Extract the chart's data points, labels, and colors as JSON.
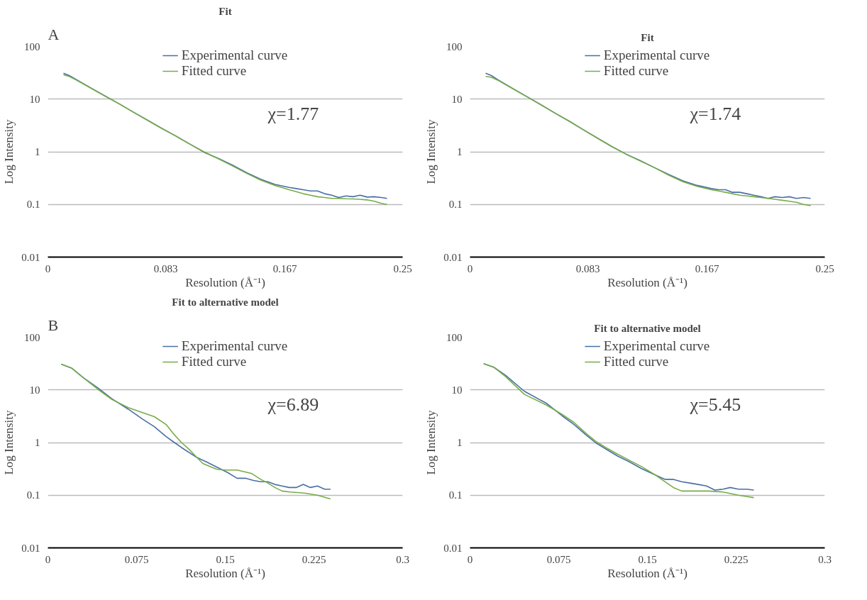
{
  "chart_data": [
    {
      "type": "line",
      "title": "Fit",
      "xlabel": "Resolution (Å⁻¹)",
      "ylabel": "Log Intensity",
      "annotations": [
        "A",
        "χ=1.77"
      ],
      "log": "y",
      "grid": "y",
      "legend": "top",
      "xlim": [
        0,
        0.25
      ],
      "xticks": [
        0,
        0.083,
        0.167,
        0.25
      ],
      "ylim": [
        0.01,
        100
      ],
      "yticks": [
        0.01,
        0.1,
        1,
        10,
        100
      ],
      "x": [
        0.011,
        0.015,
        0.02,
        0.03,
        0.04,
        0.05,
        0.06,
        0.07,
        0.08,
        0.09,
        0.1,
        0.11,
        0.12,
        0.13,
        0.14,
        0.15,
        0.16,
        0.17,
        0.175,
        0.18,
        0.185,
        0.19,
        0.195,
        0.2,
        0.205,
        0.21,
        0.215,
        0.22,
        0.225,
        0.23,
        0.235,
        0.239
      ],
      "series": [
        {
          "name": "Experimental curve",
          "color": "#4a6fa5",
          "values": [
            31,
            28,
            23.5,
            16.5,
            11.6,
            8.2,
            5.7,
            4.0,
            2.8,
            2.0,
            1.4,
            0.98,
            0.75,
            0.56,
            0.4,
            0.3,
            0.24,
            0.21,
            0.2,
            0.19,
            0.18,
            0.18,
            0.16,
            0.15,
            0.135,
            0.145,
            0.14,
            0.15,
            0.138,
            0.14,
            0.135,
            0.13
          ]
        },
        {
          "name": "Fitted curve",
          "color": "#77ac48",
          "values": [
            29,
            27,
            23,
            16.3,
            11.5,
            8.2,
            5.7,
            4.0,
            2.8,
            2.0,
            1.4,
            1.0,
            0.74,
            0.54,
            0.39,
            0.29,
            0.23,
            0.19,
            0.175,
            0.16,
            0.15,
            0.14,
            0.135,
            0.13,
            0.13,
            0.128,
            0.127,
            0.125,
            0.122,
            0.115,
            0.105,
            0.1
          ]
        }
      ]
    },
    {
      "type": "line",
      "title": "Fit",
      "xlabel": "Resolution (Å⁻¹)",
      "ylabel": "Log Intensity",
      "annotations": [
        "χ=1.74"
      ],
      "log": "y",
      "grid": "y",
      "legend": "top",
      "xlim": [
        0,
        0.25
      ],
      "xticks": [
        0,
        0.083,
        0.167,
        0.25
      ],
      "ylim": [
        0.01,
        100
      ],
      "yticks": [
        0.01,
        0.1,
        1,
        10,
        100
      ],
      "x": [
        0.011,
        0.015,
        0.02,
        0.03,
        0.04,
        0.05,
        0.06,
        0.07,
        0.08,
        0.09,
        0.1,
        0.11,
        0.12,
        0.13,
        0.14,
        0.15,
        0.16,
        0.17,
        0.175,
        0.18,
        0.185,
        0.19,
        0.195,
        0.2,
        0.205,
        0.21,
        0.215,
        0.22,
        0.225,
        0.23,
        0.235,
        0.24
      ],
      "series": [
        {
          "name": "Experimental curve",
          "color": "#4a6fa5",
          "values": [
            31,
            28,
            23,
            16,
            11.2,
            7.8,
            5.4,
            3.8,
            2.6,
            1.8,
            1.25,
            0.9,
            0.68,
            0.5,
            0.37,
            0.28,
            0.23,
            0.2,
            0.19,
            0.19,
            0.17,
            0.17,
            0.16,
            0.15,
            0.14,
            0.13,
            0.14,
            0.135,
            0.14,
            0.13,
            0.135,
            0.13
          ]
        },
        {
          "name": "Fitted curve",
          "color": "#77ac48",
          "values": [
            27,
            26,
            22.5,
            15.8,
            11.1,
            7.8,
            5.4,
            3.8,
            2.6,
            1.8,
            1.25,
            0.9,
            0.67,
            0.5,
            0.36,
            0.27,
            0.22,
            0.19,
            0.18,
            0.17,
            0.16,
            0.15,
            0.145,
            0.14,
            0.135,
            0.13,
            0.125,
            0.12,
            0.115,
            0.11,
            0.1,
            0.095
          ]
        }
      ]
    },
    {
      "type": "line",
      "title": "Fit to alternative model",
      "xlabel": "Resolution (Å⁻¹)",
      "ylabel": "Log Intensity",
      "annotations": [
        "B",
        "χ=6.89"
      ],
      "log": "y",
      "grid": "y",
      "legend": "top",
      "xlim": [
        0,
        0.3
      ],
      "xticks": [
        0,
        0.075,
        0.15,
        0.225,
        0.3
      ],
      "ylim": [
        0.01,
        100
      ],
      "yticks": [
        0.01,
        0.1,
        1,
        10,
        100
      ],
      "series": [
        {
          "name": "Experimental curve",
          "color": "#4a6fa5",
          "x": [
            0.0113,
            0.02,
            0.03,
            0.042,
            0.054,
            0.068,
            0.08,
            0.09,
            0.1,
            0.107,
            0.115,
            0.126,
            0.135,
            0.143,
            0.152,
            0.16,
            0.167,
            0.174,
            0.18,
            0.186,
            0.192,
            0.198,
            0.204,
            0.21,
            0.216,
            0.222,
            0.228,
            0.234,
            0.239
          ],
          "values": [
            30.7,
            26,
            17,
            11,
            6.8,
            4.3,
            2.8,
            2.0,
            1.3,
            1.0,
            0.75,
            0.52,
            0.42,
            0.34,
            0.27,
            0.21,
            0.21,
            0.19,
            0.18,
            0.18,
            0.16,
            0.15,
            0.14,
            0.14,
            0.16,
            0.14,
            0.15,
            0.13,
            0.13
          ]
        },
        {
          "name": "Fitted curve",
          "color": "#77ac48",
          "x": [
            0.0113,
            0.02,
            0.03,
            0.042,
            0.054,
            0.068,
            0.08,
            0.09,
            0.1,
            0.107,
            0.113,
            0.119,
            0.125,
            0.131,
            0.137,
            0.143,
            0.15,
            0.16,
            0.172,
            0.18,
            0.186,
            0.192,
            0.198,
            0.205,
            0.217,
            0.228,
            0.239
          ],
          "values": [
            30.7,
            26,
            17,
            10.4,
            6.6,
            4.6,
            3.7,
            3.1,
            2.2,
            1.4,
            1.0,
            0.76,
            0.55,
            0.4,
            0.35,
            0.31,
            0.3,
            0.3,
            0.26,
            0.2,
            0.17,
            0.14,
            0.12,
            0.115,
            0.11,
            0.1,
            0.085
          ]
        }
      ]
    },
    {
      "type": "line",
      "title": "Fit to alternative model",
      "xlabel": "Resolution (Å⁻¹)",
      "ylabel": "Log Intensity",
      "annotations": [
        "χ=5.45"
      ],
      "log": "y",
      "grid": "y",
      "legend": "top",
      "xlim": [
        0,
        0.3
      ],
      "xticks": [
        0,
        0.075,
        0.15,
        0.225,
        0.3
      ],
      "ylim": [
        0.01,
        100
      ],
      "yticks": [
        0.01,
        0.1,
        1,
        10,
        100
      ],
      "series": [
        {
          "name": "Experimental curve",
          "color": "#4a6fa5",
          "x": [
            0.0115,
            0.02,
            0.03,
            0.046,
            0.065,
            0.078,
            0.088,
            0.098,
            0.106,
            0.115,
            0.125,
            0.134,
            0.145,
            0.157,
            0.165,
            0.172,
            0.179,
            0.186,
            0.193,
            0.2,
            0.207,
            0.214,
            0.22,
            0.227,
            0.234,
            0.24
          ],
          "values": [
            31.6,
            27,
            19,
            9.4,
            5.5,
            3.2,
            2.2,
            1.4,
            1.0,
            0.75,
            0.55,
            0.44,
            0.32,
            0.24,
            0.2,
            0.2,
            0.18,
            0.17,
            0.16,
            0.15,
            0.125,
            0.13,
            0.14,
            0.13,
            0.13,
            0.125
          ]
        },
        {
          "name": "Fitted curve",
          "color": "#77ac48",
          "x": [
            0.0115,
            0.02,
            0.03,
            0.046,
            0.065,
            0.078,
            0.088,
            0.098,
            0.106,
            0.115,
            0.125,
            0.134,
            0.145,
            0.157,
            0.165,
            0.172,
            0.179,
            0.19,
            0.202,
            0.214,
            0.227,
            0.24
          ],
          "values": [
            31.6,
            27,
            18,
            8.2,
            5.1,
            3.4,
            2.4,
            1.5,
            1.07,
            0.8,
            0.6,
            0.47,
            0.35,
            0.24,
            0.18,
            0.14,
            0.12,
            0.12,
            0.12,
            0.115,
            0.1,
            0.09
          ]
        }
      ]
    }
  ]
}
